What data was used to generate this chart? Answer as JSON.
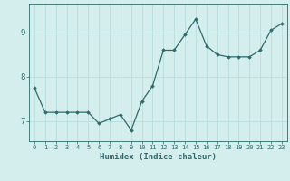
{
  "x": [
    0,
    1,
    2,
    3,
    4,
    5,
    6,
    7,
    8,
    9,
    10,
    11,
    12,
    13,
    14,
    15,
    16,
    17,
    18,
    19,
    20,
    21,
    22,
    23
  ],
  "y": [
    7.75,
    7.2,
    7.2,
    7.2,
    7.2,
    7.2,
    6.95,
    7.05,
    7.15,
    6.8,
    7.45,
    7.8,
    8.6,
    8.6,
    8.95,
    9.3,
    8.7,
    8.5,
    8.45,
    8.45,
    8.45,
    8.6,
    9.05,
    9.2
  ],
  "line_color": "#2d6b6b",
  "marker": "D",
  "marker_size": 1.8,
  "line_width": 0.9,
  "xlabel": "Humidex (Indice chaleur)",
  "xlabel_fontsize": 6.5,
  "ytick_fontsize": 6.5,
  "xtick_fontsize": 5.0,
  "yticks": [
    7,
    8,
    9
  ],
  "ylim": [
    6.55,
    9.65
  ],
  "xlim": [
    -0.5,
    23.5
  ],
  "xticks": [
    0,
    1,
    2,
    3,
    4,
    5,
    6,
    7,
    8,
    9,
    10,
    11,
    12,
    13,
    14,
    15,
    16,
    17,
    18,
    19,
    20,
    21,
    22,
    23
  ],
  "background_color": "#d4eeee",
  "grid_color": "#b8dede",
  "tick_color": "#2d6b6b",
  "label_color": "#2d6b6b",
  "spine_color": "#2d6b6b"
}
